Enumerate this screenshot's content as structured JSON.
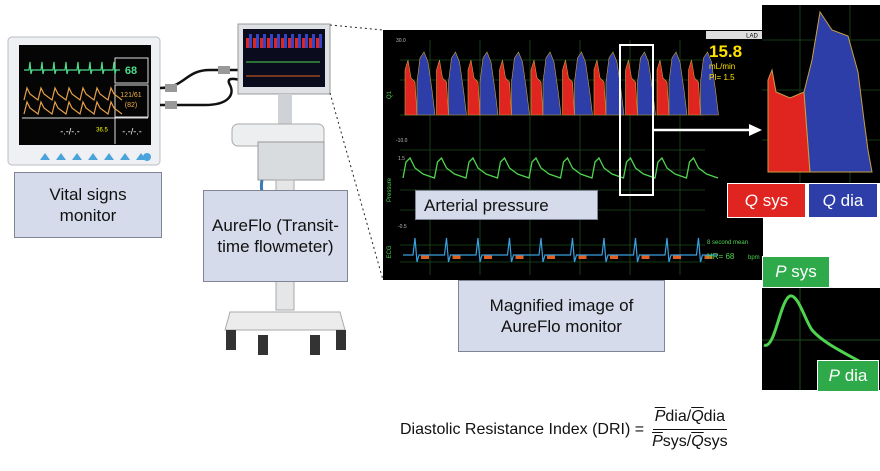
{
  "vital_monitor": {
    "label": "Vital signs monitor",
    "screen": {
      "hr": "68",
      "bp": "121/61",
      "map": "(82)",
      "temp": "36.5",
      "dash_left": "-.-/-.-",
      "dash_right": "-.-/-.-"
    }
  },
  "aureflo": {
    "label": "AureFlo (Transit-time flowmeter)"
  },
  "magnified": {
    "label": "Magnified image of AureFlo monitor",
    "overlay_label": "Arterial pressure",
    "scale_labels": [
      "30.0",
      "-10.0",
      "1.5",
      "-0.5"
    ],
    "channel_labels": [
      "Q1",
      "Pressure",
      "ECG"
    ],
    "vessel": "LAD",
    "flow": "15.8",
    "flow_unit": "mL/min",
    "pi": "PI= 1.5",
    "mean_note": "8 second mean",
    "hr": "HR= 68",
    "hr_unit": "bpm"
  },
  "zoom": {
    "q_sys": {
      "symbol": "Q",
      "text": "sys"
    },
    "q_dia": {
      "symbol": "Q",
      "text": "dia"
    },
    "p_sys": {
      "symbol": "P",
      "text": "sys"
    },
    "p_dia": {
      "symbol": "P",
      "text": "dia"
    }
  },
  "formula": {
    "lhs": "Diastolic Resistance Index (DRI) =",
    "separator": "/",
    "numerator": [
      {
        "symbol": "P",
        "text": "dia"
      },
      {
        "symbol": "Q",
        "text": "dia"
      }
    ],
    "denominator": [
      {
        "symbol": "P",
        "text": "sys"
      },
      {
        "symbol": "Q",
        "text": "sys"
      }
    ]
  }
}
